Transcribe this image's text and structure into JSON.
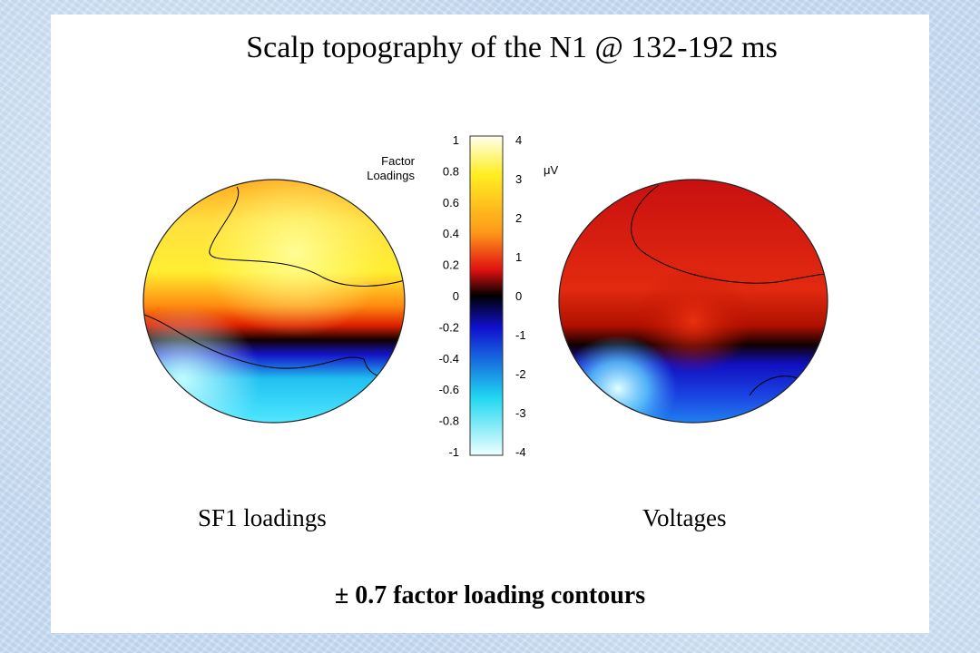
{
  "title": "Scalp topography of the N1 @ 132-192 ms",
  "colorbar": {
    "left_label_line1": "Factor",
    "left_label_line2": "Loadings",
    "right_unit": "μV",
    "left_ticks": [
      "1",
      "0.8",
      "0.6",
      "0.4",
      "0.2",
      "0",
      "-0.2",
      "-0.4",
      "-0.6",
      "-0.8",
      "-1"
    ],
    "right_ticks": [
      "4",
      "3",
      "2",
      "1",
      "0",
      "-1",
      "-2",
      "-3",
      "-4"
    ],
    "colors": {
      "top": "#ffffee",
      "yellow": "#ffee22",
      "orange": "#ff9a1a",
      "red": "#e01010",
      "dark": "#000000",
      "blue": "#1010d0",
      "cyan": "#20d8f0",
      "bottom": "#eeffff"
    }
  },
  "captions": {
    "left": "SF1 loadings",
    "right": "Voltages"
  },
  "footer": "± 0.7 factor loading contours"
}
